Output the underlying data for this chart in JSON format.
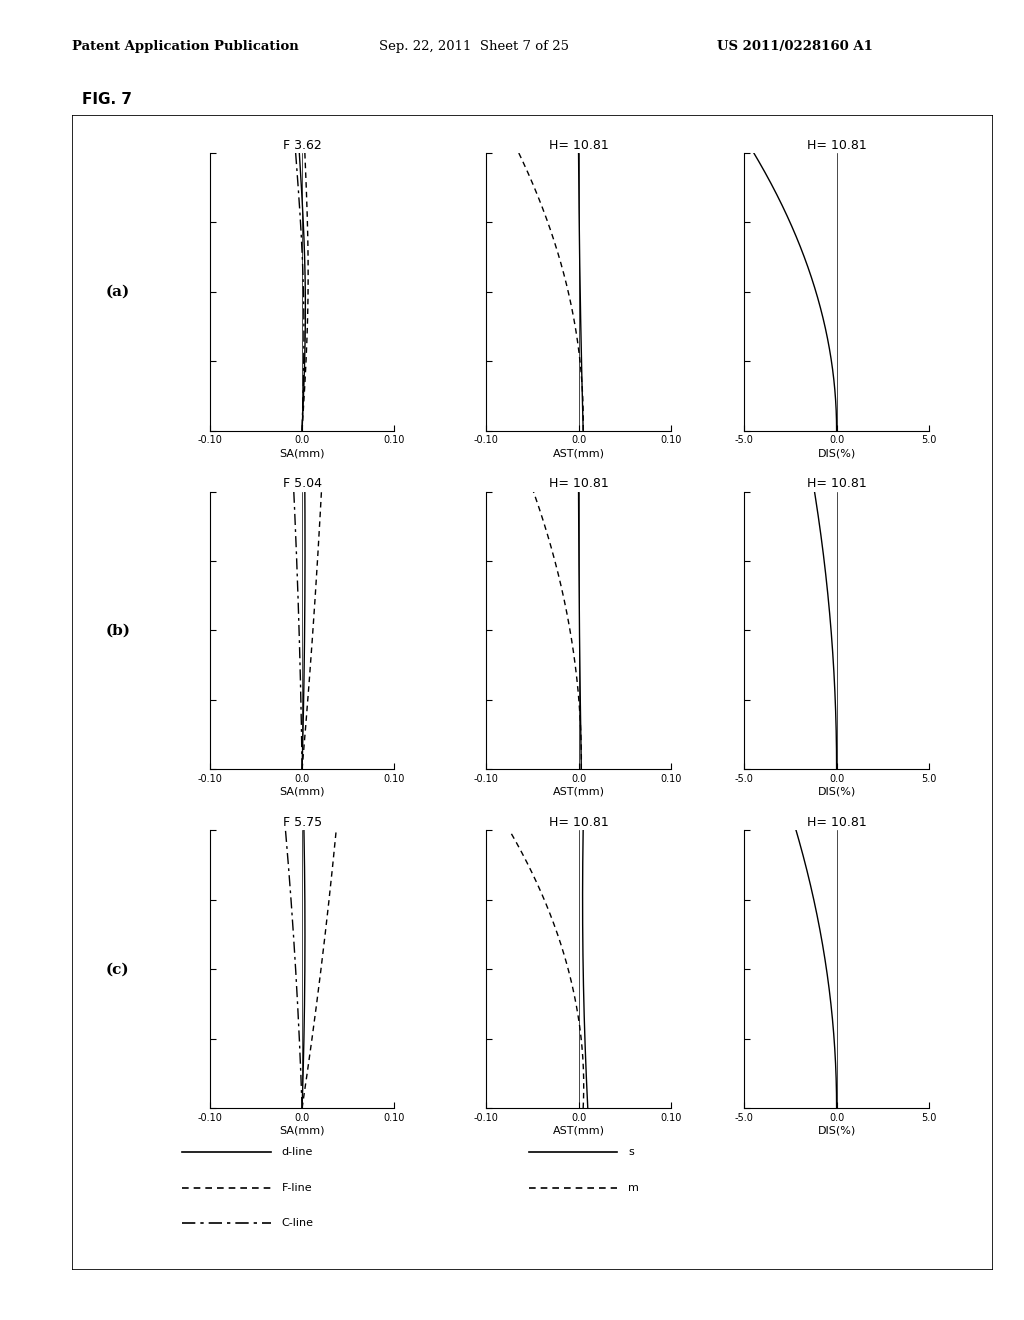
{
  "header_left": "Patent Application Publication",
  "header_mid": "Sep. 22, 2011  Sheet 7 of 25",
  "header_right": "US 2011/0228160 A1",
  "fig_label": "FIG. 7",
  "row_labels": [
    "(a)",
    "(b)",
    "(c)"
  ],
  "sa_titles": [
    "F 3.62",
    "F 5.04",
    "F 5.75"
  ],
  "ast_titles": [
    "H= 10.81",
    "H= 10.81",
    "H= 10.81"
  ],
  "dis_titles": [
    "H= 10.81",
    "H= 10.81",
    "H= 10.81"
  ],
  "sa_xlim": [
    -0.1,
    0.1
  ],
  "ast_xlim": [
    -0.1,
    0.1
  ],
  "dis_xlim": [
    -5.0,
    5.0
  ],
  "sa_xticks": [
    -0.1,
    0.0,
    0.1
  ],
  "ast_xticks": [
    -0.1,
    0.0,
    0.1
  ],
  "dis_xticks": [
    -5.0,
    0.0,
    5.0
  ],
  "sa_xtick_labels": [
    "-0.10",
    "0.0",
    "0.10"
  ],
  "ast_xtick_labels": [
    "-0.10",
    "0.0",
    "0.10"
  ],
  "dis_xtick_labels": [
    "-5.0",
    "0.0",
    "5.0"
  ],
  "sa_xlabel": "SA(mm)",
  "ast_xlabel": "AST(mm)",
  "dis_xlabel": "DIS(%)",
  "background_color": "#ffffff"
}
